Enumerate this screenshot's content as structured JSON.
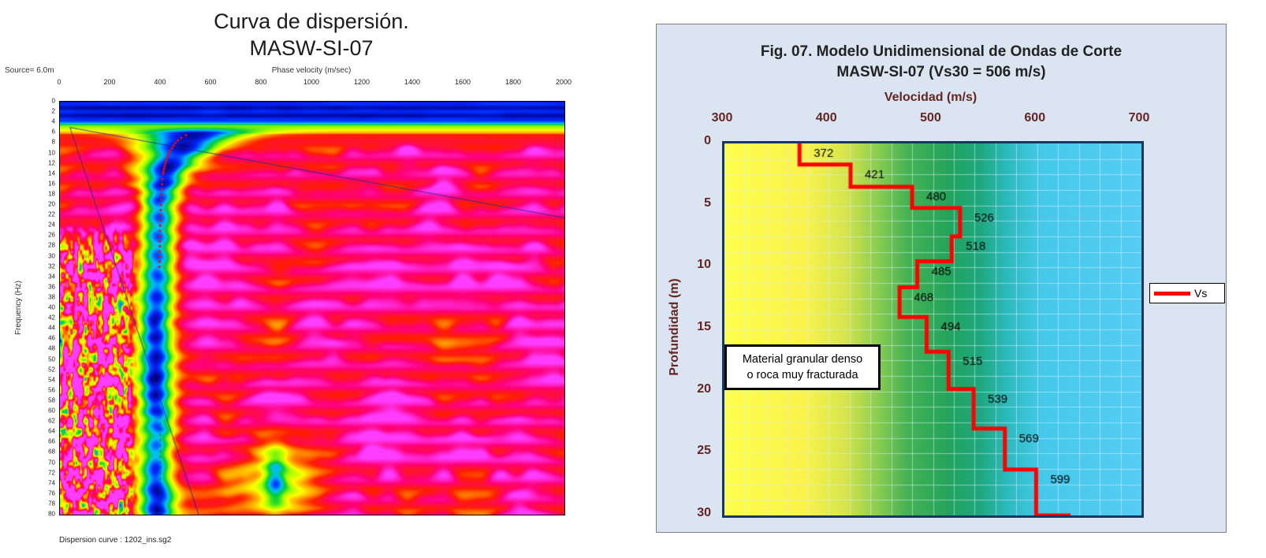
{
  "left_chart": {
    "title": "Curva de dispersión.",
    "subtitle": "MASW-SI-07",
    "source_label": "Source= 6.0m",
    "xlabel": "Phase velocity (m/sec)",
    "ylabel": "Frequency (Hz)",
    "footer": "Dispersion curve : 1202_ins.sg2"
  },
  "right_chart": {
    "title": "Fig. 07. Modelo Unidimensional de Ondas de Corte",
    "subtitle": "MASW-SI-07 (Vs30 = 506 m/s)",
    "xlabel": "Velocidad (m/s)",
    "ylabel": "Profundidad (m)",
    "annotation_line1": "Material granular denso",
    "annotation_line2": "o roca muy fracturada",
    "legend_label": "Vs",
    "accent_color": "#ff0000",
    "panel_bg": "#dbe5f1",
    "axis_text_color": "#632423"
  },
  "chart_data": [
    {
      "type": "heatmap",
      "title": "Curva de dispersión. MASW-SI-07",
      "xlabel": "Phase velocity (m/sec)",
      "ylabel": "Frequency (Hz)",
      "xlim": [
        0,
        2000
      ],
      "ylim": [
        0,
        80
      ],
      "x_ticks": [
        0,
        200,
        400,
        600,
        800,
        1000,
        1200,
        1400,
        1600,
        1800,
        2000
      ],
      "y_tick_step": 2,
      "source_label": "Source= 6.0m",
      "footer": "Dispersion curve : 1202_ins.sg2",
      "grid": false,
      "legend_position": "none",
      "colormap": [
        [
          0.0,
          0,
          0,
          130
        ],
        [
          0.12,
          0,
          40,
          255
        ],
        [
          0.24,
          0,
          190,
          255
        ],
        [
          0.36,
          0,
          205,
          60
        ],
        [
          0.5,
          165,
          255,
          0
        ],
        [
          0.6,
          255,
          255,
          0
        ],
        [
          0.7,
          255,
          160,
          0
        ],
        [
          0.8,
          255,
          30,
          0
        ],
        [
          0.9,
          255,
          0,
          120
        ],
        [
          1.0,
          255,
          60,
          255
        ]
      ],
      "picked_curve": [
        [
          6.5,
          500
        ],
        [
          7,
          480
        ],
        [
          7.5,
          468
        ],
        [
          8,
          458
        ],
        [
          8.5,
          450
        ],
        [
          9,
          444
        ],
        [
          9.5,
          438
        ],
        [
          10,
          433
        ],
        [
          10.5,
          428
        ],
        [
          11,
          424
        ],
        [
          11.5,
          421
        ],
        [
          12,
          418
        ],
        [
          12.5,
          415
        ],
        [
          13,
          413
        ],
        [
          13.5,
          411
        ],
        [
          14,
          409
        ],
        [
          15,
          407
        ],
        [
          16,
          405
        ],
        [
          17,
          404
        ],
        [
          18,
          403
        ],
        [
          19,
          402
        ],
        [
          20,
          401
        ],
        [
          21,
          400
        ],
        [
          22,
          399
        ],
        [
          23,
          398
        ],
        [
          24,
          398
        ],
        [
          25,
          397
        ],
        [
          26,
          397
        ],
        [
          27,
          396
        ],
        [
          28,
          396
        ],
        [
          29,
          395
        ],
        [
          30,
          395
        ],
        [
          31,
          395
        ],
        [
          32,
          394
        ]
      ],
      "overlay_lines": [
        [
          40,
          5,
          550,
          80
        ],
        [
          40,
          5,
          2000,
          22.5
        ]
      ],
      "dashed_vertical": [
        398,
        60,
        80
      ]
    },
    {
      "type": "line",
      "subtype": "step-depth-profile",
      "title": "Fig. 07. Modelo Unidimensional de Ondas de Corte MASW-SI-07 (Vs30 = 506 m/s)",
      "xlabel": "Velocidad (m/s)",
      "ylabel": "Profundidad (m)",
      "xlim": [
        300,
        700
      ],
      "ylim": [
        0,
        30
      ],
      "x_ticks": [
        300,
        400,
        500,
        600,
        700
      ],
      "y_ticks": [
        0,
        5,
        10,
        15,
        20,
        25,
        30
      ],
      "vs30": 506,
      "series": [
        {
          "name": "Vs",
          "color": "#ff0000",
          "layers": [
            {
              "vs": 372,
              "top": 0.0,
              "bottom": 1.7
            },
            {
              "vs": 421,
              "top": 1.7,
              "bottom": 3.5
            },
            {
              "vs": 480,
              "top": 3.5,
              "bottom": 5.2
            },
            {
              "vs": 526,
              "top": 5.2,
              "bottom": 7.5
            },
            {
              "vs": 518,
              "top": 7.5,
              "bottom": 9.5
            },
            {
              "vs": 485,
              "top": 9.5,
              "bottom": 11.6
            },
            {
              "vs": 468,
              "top": 11.6,
              "bottom": 14.0
            },
            {
              "vs": 494,
              "top": 14.0,
              "bottom": 16.8
            },
            {
              "vs": 515,
              "top": 16.8,
              "bottom": 19.8
            },
            {
              "vs": 539,
              "top": 19.8,
              "bottom": 23.0
            },
            {
              "vs": 569,
              "top": 23.0,
              "bottom": 26.3
            },
            {
              "vs": 599,
              "top": 26.3,
              "bottom": 30.0
            }
          ],
          "vs_at_bottom": 632
        }
      ],
      "annotation": "Material granular denso o roca muy fracturada",
      "legend": {
        "position": "right",
        "entries": [
          "Vs"
        ]
      },
      "grid": {
        "x_step": 20,
        "y_step": 1.25,
        "color": "#d8eefc"
      },
      "background_gradient": [
        [
          300,
          "#ffff4d"
        ],
        [
          380,
          "#f9f24b"
        ],
        [
          415,
          "#d8e54c"
        ],
        [
          445,
          "#8fcf50"
        ],
        [
          475,
          "#46b354"
        ],
        [
          515,
          "#23a45c"
        ],
        [
          545,
          "#1ea87f"
        ],
        [
          575,
          "#2fbcc4"
        ],
        [
          605,
          "#46c9ea"
        ],
        [
          700,
          "#55cdf4"
        ]
      ]
    }
  ]
}
